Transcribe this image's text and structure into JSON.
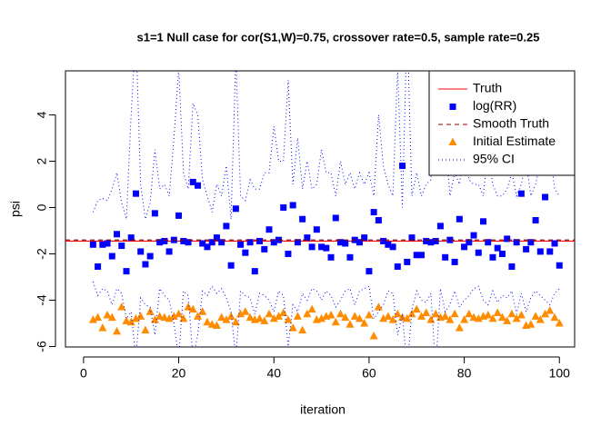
{
  "chart_data": {
    "type": "scatter",
    "title": "s1=1 Null case for cor(S1,W)=0.75, crossover rate=0.5, sample rate=0.25",
    "x_label": "iteration",
    "y_label": "psi",
    "xlim": [
      -3.8,
      103.2
    ],
    "ylim": [
      -6.02,
      5.9
    ],
    "xticks": [
      0,
      20,
      40,
      60,
      80,
      100
    ],
    "yticks": [
      -6,
      -4,
      -2,
      0,
      2,
      4
    ],
    "legend": "topright",
    "x": [
      2,
      3,
      4,
      5,
      6,
      7,
      8,
      9,
      10,
      11,
      12,
      13,
      14,
      15,
      16,
      17,
      18,
      19,
      20,
      21,
      22,
      23,
      24,
      25,
      26,
      27,
      28,
      29,
      30,
      31,
      32,
      33,
      34,
      35,
      36,
      37,
      38,
      39,
      40,
      41,
      42,
      43,
      44,
      45,
      46,
      47,
      48,
      49,
      50,
      51,
      52,
      53,
      54,
      55,
      56,
      57,
      58,
      59,
      60,
      61,
      62,
      63,
      64,
      65,
      66,
      67,
      68,
      69,
      70,
      71,
      72,
      73,
      74,
      75,
      76,
      77,
      78,
      79,
      80,
      81,
      82,
      83,
      84,
      85,
      86,
      87,
      88,
      89,
      90,
      91,
      92,
      93,
      94,
      95,
      96,
      97,
      98,
      99,
      100
    ],
    "series": [
      {
        "name": "Truth",
        "kind": "hline",
        "value": -1.45,
        "color": "#ff0000"
      },
      {
        "name": "log(RR)",
        "kind": "square",
        "color": "#0000ff",
        "values": [
          -1.6,
          -2.55,
          -1.6,
          -1.55,
          -2.1,
          -1.15,
          -1.65,
          -2.75,
          -1.3,
          0.6,
          -1.9,
          -2.45,
          -2.1,
          -0.25,
          -1.5,
          -1.45,
          -1.9,
          -1.4,
          -0.35,
          -1.45,
          -1.5,
          1.1,
          0.95,
          -1.55,
          -1.7,
          -1.5,
          -1.3,
          -1.5,
          -0.8,
          -2.5,
          -0.05,
          -1.6,
          -1.95,
          -1.5,
          -2.75,
          -1.45,
          -1.8,
          -0.95,
          -1.5,
          -1.4,
          0.0,
          -2.0,
          0.1,
          -1.5,
          -0.5,
          -1.3,
          -1.7,
          -0.95,
          -1.7,
          -1.75,
          -2.15,
          -0.45,
          -1.5,
          -1.55,
          -2.15,
          -1.4,
          -1.5,
          -1.3,
          -2.75,
          -0.2,
          -0.55,
          -1.45,
          -1.6,
          -1.7,
          -2.55,
          1.8,
          -2.35,
          -1.3,
          -2.05,
          -2.05,
          -1.45,
          -1.5,
          -1.45,
          -0.8,
          -2.15,
          -1.4,
          -2.35,
          -0.5,
          -1.7,
          -1.5,
          -1.2,
          -1.95,
          -0.6,
          -1.5,
          -2.15,
          -1.75,
          -2.0,
          -1.35,
          -2.55,
          -1.5,
          0.6,
          -1.8,
          -1.5,
          -0.55,
          -1.9,
          0.45,
          -1.9,
          -1.55,
          -2.5
        ]
      },
      {
        "name": "Smooth Truth",
        "kind": "dashed-hline",
        "value": -1.4,
        "color": "#8b0000"
      },
      {
        "name": "Initial Estimate",
        "kind": "triangle",
        "color": "#ff8c00",
        "values": [
          -4.85,
          -4.75,
          -5.2,
          -4.65,
          -4.75,
          -5.35,
          -4.3,
          -4.9,
          -4.95,
          -4.8,
          -4.7,
          -5.3,
          -4.5,
          -4.85,
          -4.7,
          -4.75,
          -4.8,
          -4.7,
          -4.6,
          -4.8,
          -4.3,
          -4.4,
          -4.7,
          -4.5,
          -4.95,
          -5.05,
          -5.1,
          -4.75,
          -4.85,
          -4.7,
          -4.95,
          -4.6,
          -4.5,
          -4.75,
          -4.85,
          -4.8,
          -4.9,
          -4.6,
          -4.8,
          -4.7,
          -4.55,
          -4.85,
          -5.2,
          -4.7,
          -5.3,
          -4.6,
          -4.4,
          -4.85,
          -4.8,
          -4.7,
          -4.65,
          -4.95,
          -4.6,
          -4.75,
          -5.05,
          -4.7,
          -4.8,
          -5.0,
          -4.65,
          -5.55,
          -4.3,
          -4.8,
          -4.7,
          -4.85,
          -4.6,
          -4.75,
          -4.8,
          -4.6,
          -4.4,
          -4.7,
          -4.55,
          -4.85,
          -4.6,
          -4.75,
          -4.7,
          -4.85,
          -4.6,
          -5.2,
          -4.85,
          -4.6,
          -4.75,
          -4.8,
          -4.7,
          -4.65,
          -4.8,
          -4.55,
          -4.75,
          -4.9,
          -4.6,
          -4.8,
          -4.65,
          -5.1,
          -5.05,
          -4.7,
          -4.85,
          -4.6,
          -4.45,
          -4.75,
          -5.0
        ]
      },
      {
        "name": "95% CI",
        "kind": "dotted",
        "color": "#0000ff",
        "upper": [
          -0.2,
          0.3,
          0.4,
          0.3,
          0.8,
          1.5,
          0.2,
          -0.5,
          4.0,
          7.5,
          1.0,
          -0.5,
          0.2,
          2.5,
          0.8,
          1.0,
          0.5,
          3.0,
          6.0,
          1.5,
          0.8,
          4.5,
          4.0,
          1.2,
          0.5,
          -0.2,
          1.0,
          0.5,
          1.8,
          -0.5,
          6.5,
          0.5,
          0.3,
          1.2,
          0.8,
          0.8,
          1.5,
          1.5,
          3.5,
          2.0,
          2.0,
          5.5,
          1.0,
          3.0,
          0.8,
          2.0,
          0.8,
          1.0,
          2.5,
          1.5,
          1.5,
          0.5,
          2.0,
          1.0,
          1.5,
          0.8,
          1.5,
          1.0,
          1.5,
          0.5,
          4.0,
          1.8,
          1.0,
          0.5,
          6.0,
          0.0,
          8.0,
          0.5,
          1.5,
          0.5,
          1.0,
          1.2,
          8.0,
          1.5,
          3.0,
          0.5,
          1.5,
          1.0,
          2.5,
          1.2,
          1.0,
          1.0,
          0.5,
          2.5,
          1.0,
          0.5,
          0.5,
          0.8,
          1.5,
          0.5,
          1.0,
          2.0,
          0.5,
          1.0,
          2.0,
          1.5,
          2.5,
          0.8,
          0.5
        ],
        "lower": [
          -3.2,
          -3.8,
          -3.5,
          -3.6,
          -4.2,
          -3.5,
          -3.7,
          -4.8,
          -4.5,
          -6.5,
          -3.9,
          -4.2,
          -4.3,
          -5.5,
          -3.5,
          -3.8,
          -4.0,
          -5.0,
          -6.5,
          -3.6,
          -3.8,
          -6.5,
          -5.5,
          -3.6,
          -3.8,
          -3.4,
          -3.7,
          -3.5,
          -3.9,
          -4.5,
          -6.5,
          -3.6,
          -3.8,
          -3.9,
          -4.6,
          -3.7,
          -3.8,
          -4.0,
          -4.5,
          -3.6,
          -3.8,
          -6.0,
          -4.2,
          -4.5,
          -3.7,
          -4.0,
          -3.5,
          -3.6,
          -4.0,
          -3.6,
          -3.8,
          -4.3,
          -4.0,
          -3.6,
          -3.5,
          -4.2,
          -3.6,
          -3.5,
          -3.4,
          -4.8,
          -4.5,
          -4.2,
          -3.6,
          -3.7,
          -5.5,
          -4.6,
          -7.0,
          -4.4,
          -3.6,
          -4.0,
          -4.1,
          -3.7,
          -7.0,
          -3.5,
          -4.5,
          -4.2,
          -3.6,
          -4.3,
          -4.0,
          -3.8,
          -3.5,
          -3.4,
          -4.0,
          -4.2,
          -3.6,
          -4.1,
          -3.8,
          -3.9,
          -3.6,
          -4.6,
          -3.7,
          -4.5,
          -3.9,
          -3.6,
          -3.8,
          -4.0,
          -4.2,
          -3.7,
          -3.5
        ]
      }
    ]
  }
}
